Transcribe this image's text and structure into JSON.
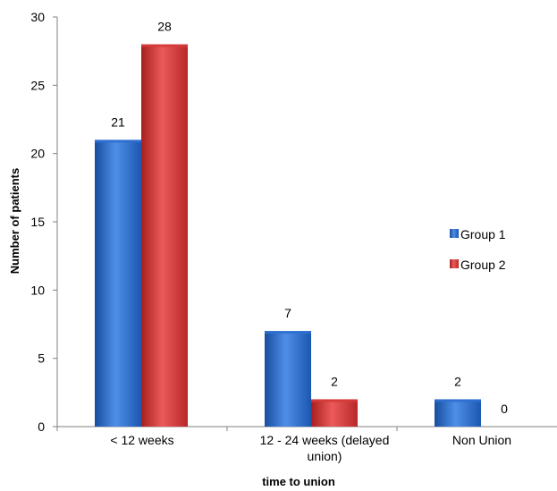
{
  "chart_data": {
    "type": "bar",
    "categories": [
      "< 12 weeks",
      "12 - 24 weeks     (delayed union)",
      "Non Union"
    ],
    "category_lines": [
      [
        "< 12 weeks"
      ],
      [
        "12 - 24 weeks     (delayed",
        "union)"
      ],
      [
        "Non Union"
      ]
    ],
    "series": [
      {
        "name": "Group 1",
        "values": [
          21,
          7,
          2
        ],
        "color": "#2f6fd1"
      },
      {
        "name": "Group 2",
        "values": [
          28,
          2,
          0
        ],
        "color": "#d63b3b"
      }
    ],
    "xlabel": "time to  union",
    "ylabel": "Number of patients",
    "ylim": [
      0,
      30
    ],
    "yticks": [
      0,
      5,
      10,
      15,
      20,
      25,
      30
    ],
    "grid": false,
    "legend_position": "right",
    "data_labels": true
  }
}
